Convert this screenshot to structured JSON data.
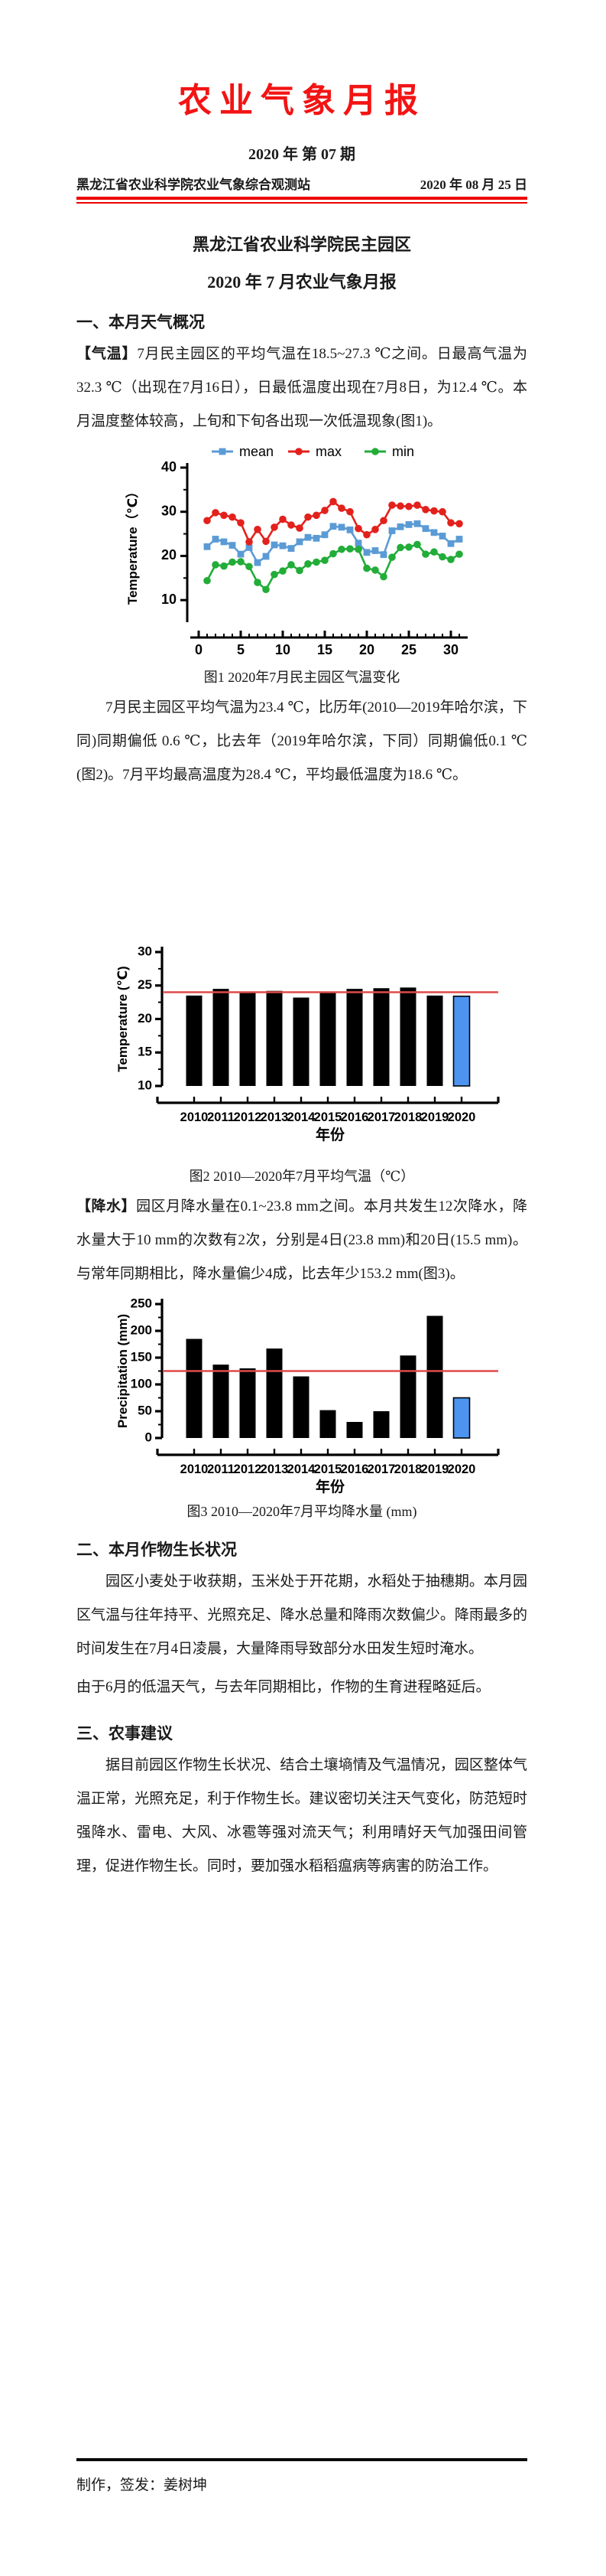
{
  "page": {
    "masthead_title": "农业气象月报",
    "issue_line": "2020 年 第 07 期",
    "station": "黑龙江省农业科学院农业气象综合观测站",
    "date": "2020 年 08 月 25 日",
    "doc_title_line1": "黑龙江省农业科学院民主园区",
    "doc_title_line2": "2020 年 7 月农业气象月报",
    "footer_credit": "制作，签发：姜树坤"
  },
  "theme": {
    "masthead_red": "#f21414",
    "rule_red": "#ee0000"
  },
  "sections": {
    "s1_heading": "一、本月天气概况",
    "p_temp_label": "【气温】",
    "p_temp_body": "7月民主园区的平均气温在18.5~27.3 ℃之间。日最高气温为32.3 ℃（出现在7月16日），日最低温度出现在7月8日，为12.4 ℃。本月温度整体较高，上旬和下旬各出现一次低温现象(图1)。",
    "fig1_caption": "图1 2020年7月民主园区气温变化",
    "p_temp2": "7月民主园区平均气温为23.4 ℃，比历年(2010—2019年哈尔滨，下同)同期偏低 0.6 ℃，比去年（2019年哈尔滨，下同）同期偏低0.1 ℃(图2)。7月平均最高温度为28.4 ℃，平均最低温度为18.6 ℃。",
    "fig2_caption": "图2 2010—2020年7月平均气温（℃）",
    "p_precip_label": "【降水】",
    "p_precip_body": "园区月降水量在0.1~23.8 mm之间。本月共发生12次降水，降水量大于10 mm的次数有2次，分别是4日(23.8 mm)和20日(15.5 mm)。与常年同期相比，降水量偏少4成，比去年少153.2 mm(图3)。",
    "fig3_caption": "图3 2010—2020年7月平均降水量 (mm)",
    "s2_heading": "二、本月作物生长状况",
    "p_crop1": "园区小麦处于收获期，玉米处于开花期，水稻处于抽穗期。本月园区气温与往年持平、光照充足、降水总量和降雨次数偏少。降雨最多的时间发生在7月4日凌晨，大量降雨导致部分水田发生短时淹水。",
    "p_crop2": "由于6月的低温天气，与去年同期相比，作物的生育进程略延后。",
    "s3_heading": "三、农事建议",
    "p_advice": "据目前园区作物生长状况、结合土壤墒情及气温情况，园区整体气温正常，光照充足，利于作物生长。建议密切关注天气变化，防范短时强降水、雷电、大风、冰雹等强对流天气；利用晴好天气加强田间管理，促进作物生长。同时，要加强水稻稻瘟病等病害的防治工作。"
  },
  "chart_data": [
    {
      "type": "line",
      "title": "图1 2020年7月民主园区气温变化",
      "x": [
        1,
        2,
        3,
        4,
        5,
        6,
        7,
        8,
        9,
        10,
        11,
        12,
        13,
        14,
        15,
        16,
        17,
        18,
        19,
        20,
        21,
        22,
        23,
        24,
        25,
        26,
        27,
        28,
        29,
        30,
        31
      ],
      "series": [
        {
          "name": "mean",
          "marker": "square",
          "color": "#5B9BD5",
          "values": [
            22.1,
            23.8,
            23.2,
            22.4,
            20.4,
            21.9,
            18.5,
            19.9,
            22.5,
            22.3,
            21.7,
            23.2,
            24.2,
            24.0,
            24.8,
            26.7,
            26.5,
            25.9,
            22.9,
            20.8,
            21.2,
            20.3,
            25.7,
            26.6,
            27.1,
            27.3,
            26.2,
            25.3,
            24.5,
            22.8,
            23.8
          ]
        },
        {
          "name": "max",
          "marker": "circle",
          "color": "#E3211C",
          "values": [
            28.0,
            29.8,
            29.2,
            28.8,
            27.5,
            23.2,
            26.0,
            23.3,
            26.5,
            28.3,
            27.0,
            26.3,
            28.8,
            29.2,
            30.3,
            32.3,
            30.8,
            30.0,
            26.2,
            24.8,
            26.0,
            28.0,
            31.5,
            31.3,
            31.2,
            31.5,
            30.5,
            30.2,
            30.0,
            27.5,
            27.3
          ]
        },
        {
          "name": "min",
          "marker": "circle",
          "color": "#22AC38",
          "values": [
            14.4,
            18.0,
            17.7,
            18.6,
            18.7,
            17.6,
            14.0,
            12.4,
            15.8,
            16.6,
            18.0,
            16.7,
            18.2,
            18.6,
            19.0,
            20.5,
            21.5,
            21.6,
            21.5,
            17.2,
            16.8,
            15.3,
            19.7,
            21.9,
            22.0,
            22.6,
            20.4,
            20.9,
            19.8,
            19.2,
            20.4
          ]
        }
      ],
      "xlabel": "",
      "ylabel": "Temperature（℃）",
      "ylim": [
        5,
        40
      ],
      "yticks": [
        10,
        20,
        30,
        40
      ],
      "yminor": [
        15,
        25,
        35
      ],
      "xticks": [
        0,
        5,
        10,
        15,
        20,
        25,
        30
      ],
      "legend_position": "top",
      "grid": false
    },
    {
      "type": "bar",
      "title": "图2 2010—2020年7月平均气温（℃）",
      "categories": [
        "2010",
        "2011",
        "2012",
        "2013",
        "2014",
        "2015",
        "2016",
        "2017",
        "2018",
        "2019",
        "2020"
      ],
      "values": [
        23.5,
        24.5,
        24.1,
        24.2,
        23.2,
        23.9,
        24.5,
        24.6,
        24.7,
        23.5,
        23.4
      ],
      "bar_color": "#000000",
      "highlight_index": 10,
      "highlight_color": "#4D94F0",
      "reference_line": 24.0,
      "reference_color": "#E04A4A",
      "xlabel": "年份",
      "ylabel": "Temperature (℃)",
      "ylim": [
        10,
        30
      ],
      "yticks": [
        10,
        15,
        20,
        25,
        30
      ],
      "grid": false
    },
    {
      "type": "bar",
      "title": "图3 2010—2020年7月平均降水量 (mm)",
      "categories": [
        "2010",
        "2011",
        "2012",
        "2013",
        "2014",
        "2015",
        "2016",
        "2017",
        "2018",
        "2019",
        "2020"
      ],
      "values": [
        185,
        137,
        130,
        167,
        115,
        52,
        30,
        50,
        154,
        228,
        75
      ],
      "bar_color": "#000000",
      "highlight_index": 10,
      "highlight_color": "#4D94F0",
      "reference_line": 125,
      "reference_color": "#E04A4A",
      "xlabel": "年份",
      "ylabel": "Precipitation (mm)",
      "ylim": [
        0,
        250
      ],
      "yticks": [
        0,
        50,
        100,
        150,
        200,
        250
      ],
      "grid": false
    }
  ]
}
